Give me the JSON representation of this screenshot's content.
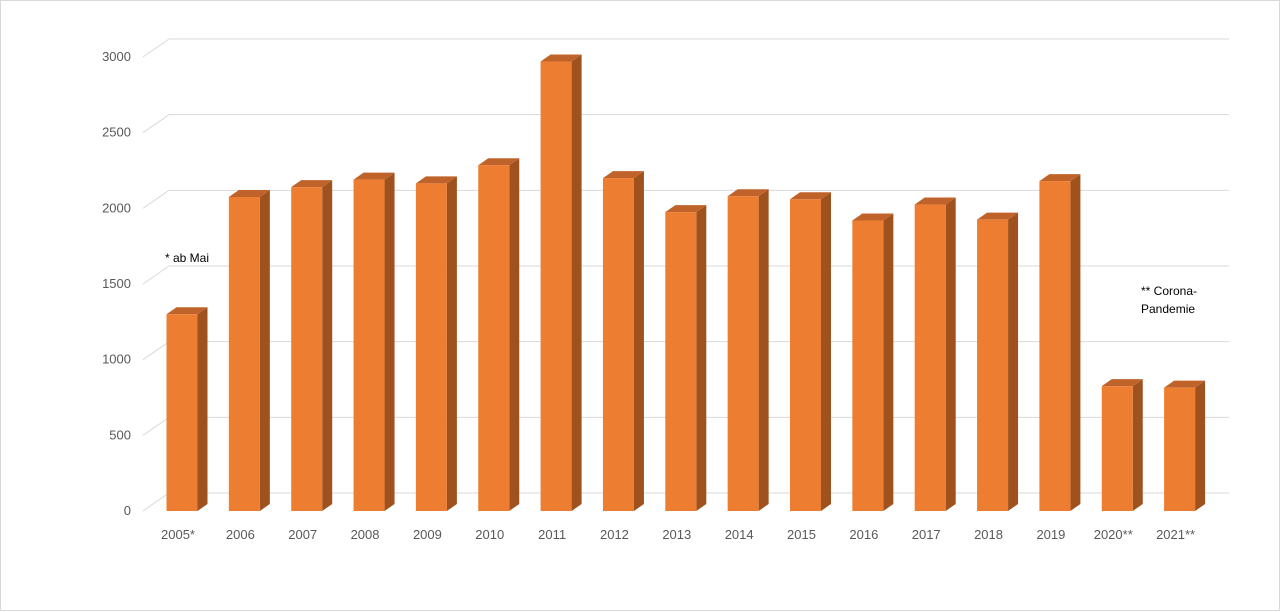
{
  "chart_data": {
    "type": "bar",
    "title": "",
    "xlabel": "",
    "ylabel": "",
    "categories": [
      "2005*",
      "2006",
      "2007",
      "2008",
      "2009",
      "2010",
      "2011",
      "2012",
      "2013",
      "2014",
      "2015",
      "2016",
      "2017",
      "2018",
      "2019",
      "2020**",
      "2021**"
    ],
    "values": [
      1300,
      2075,
      2140,
      2190,
      2165,
      2285,
      2970,
      2200,
      1975,
      2080,
      2060,
      1920,
      2025,
      1925,
      2180,
      825,
      815
    ],
    "ylim": [
      0,
      3000
    ],
    "yticks": [
      0,
      500,
      1000,
      1500,
      2000,
      2500,
      3000
    ],
    "grid": true,
    "legend": "none",
    "bar_style": "3d",
    "colors": {
      "front": "#ED7D31",
      "side": "#A0521E",
      "top": "#C0632A",
      "grid": "#d9d9d9",
      "axis_text": "#595959"
    },
    "annotations": [
      {
        "text": "* ab Mai",
        "near": "2005*"
      },
      {
        "lines": [
          "** Corona-",
          "Pandemie"
        ],
        "near": "2021**"
      }
    ]
  }
}
